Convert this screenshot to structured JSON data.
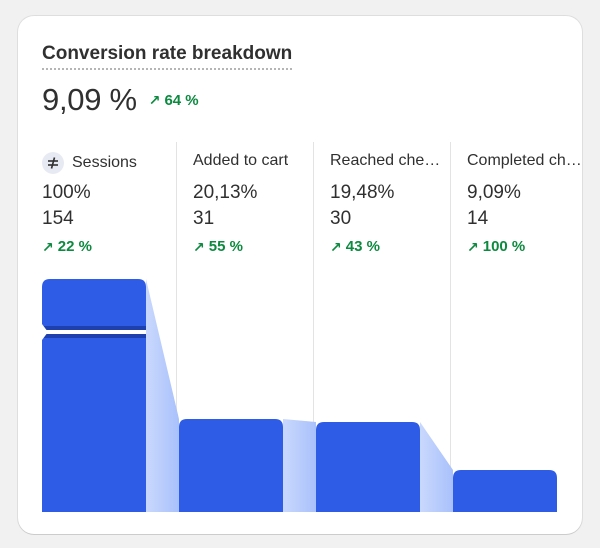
{
  "card": {
    "title": "Conversion rate breakdown",
    "headline_value": "9,09 %",
    "headline_delta": "64 %",
    "colors": {
      "bar": "#2e5ce6",
      "bar_dark": "#1e40af",
      "connector": "#a9c1fb",
      "positive": "#0c8a3f"
    }
  },
  "steps": [
    {
      "label": "Sessions",
      "percent": "100%",
      "count": "154",
      "delta": "22 %",
      "icon": "sessions-icon"
    },
    {
      "label": "Added to cart",
      "percent": "20,13%",
      "count": "31",
      "delta": "55 %"
    },
    {
      "label": "Reached checkout",
      "percent": "19,48%",
      "count": "30",
      "delta": "43 %"
    },
    {
      "label": "Completed checkout",
      "percent": "9,09%",
      "count": "14",
      "delta": "100 %"
    }
  ],
  "chart_data": {
    "type": "bar",
    "categories": [
      "Sessions",
      "Added to cart",
      "Reached checkout",
      "Completed checkout"
    ],
    "values": [
      154,
      31,
      30,
      14
    ],
    "percent": [
      100,
      20.13,
      19.48,
      9.09
    ],
    "axis_break": true
  }
}
